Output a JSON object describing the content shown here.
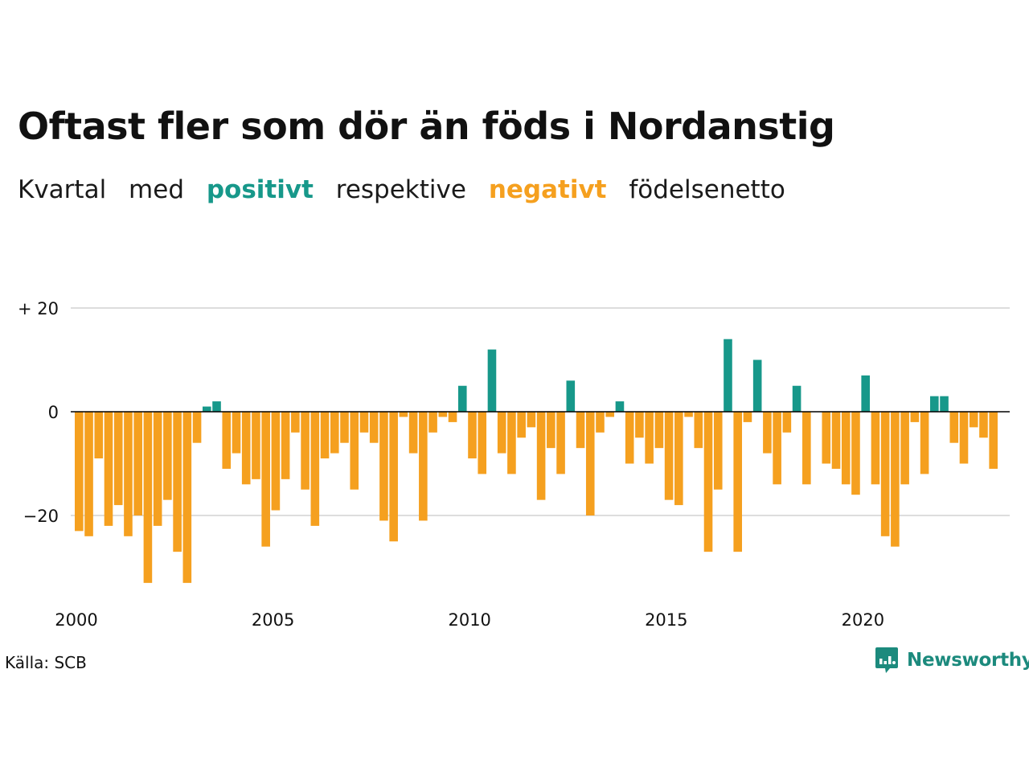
{
  "title": "Oftast fler som dör än föds i Nordanstig",
  "subtitle": {
    "part1": "Kvartal",
    "part2": "med",
    "positive_word": "positivt",
    "part3": "respektive",
    "negative_word": "negativt",
    "part4": "födelsenetto"
  },
  "source": "Källa: SCB",
  "brand": {
    "name": "Newsworthy",
    "icon": "newsworthy-logo-icon"
  },
  "colors": {
    "positive": "#17988a",
    "negative": "#f5a01f",
    "grid": "#dddddd",
    "zero": "#000000"
  },
  "chart_data": {
    "type": "bar",
    "x_start": 2000,
    "periods_per_year": 4,
    "y_ticks": [
      {
        "value": 20,
        "label": "+ 20"
      },
      {
        "value": 0,
        "label": "0"
      },
      {
        "value": -20,
        "label": "−20"
      }
    ],
    "x_ticks": [
      {
        "value": 2000,
        "label": "2000"
      },
      {
        "value": 2005,
        "label": "2005"
      },
      {
        "value": 2010,
        "label": "2010"
      },
      {
        "value": 2015,
        "label": "2015"
      },
      {
        "value": 2020,
        "label": "2020"
      }
    ],
    "ylim": [
      -35,
      22
    ],
    "grid": true,
    "values": [
      -23,
      -24,
      -9,
      -22,
      -18,
      -24,
      -20,
      -33,
      -22,
      -17,
      -27,
      -33,
      -6,
      1,
      2,
      -11,
      -8,
      -14,
      -13,
      -26,
      -19,
      -13,
      -4,
      -15,
      -22,
      -9,
      -8,
      -6,
      -15,
      -4,
      -6,
      -21,
      -25,
      -1,
      -8,
      -21,
      -4,
      -1,
      -2,
      5,
      -9,
      -12,
      12,
      -8,
      -12,
      -5,
      -3,
      -17,
      -7,
      -12,
      6,
      -7,
      -20,
      -4,
      -1,
      2,
      -10,
      -5,
      -10,
      -7,
      -17,
      -18,
      -1,
      -7,
      -27,
      -15,
      14,
      -27,
      -2,
      10,
      -8,
      -14,
      -4,
      5,
      -14,
      0,
      -10,
      -11,
      -14,
      -16,
      7,
      -14,
      -24,
      -26,
      -14,
      -2,
      -12,
      3,
      3,
      -6,
      -10,
      -3,
      -5,
      -11
    ]
  }
}
